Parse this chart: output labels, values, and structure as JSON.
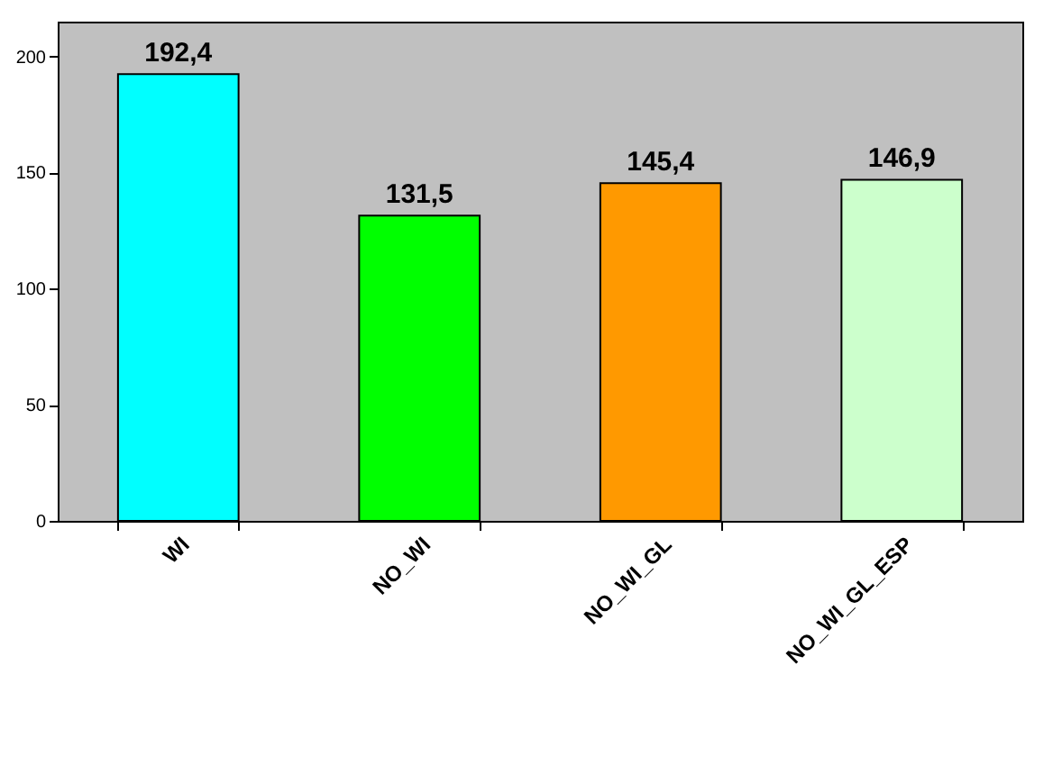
{
  "chart_data": {
    "type": "bar",
    "categories": [
      "WI",
      "NO_WI",
      "NO_WI_GL",
      "NO_WI_GL_ESP"
    ],
    "values": [
      192.4,
      131.5,
      145.4,
      146.9
    ],
    "colors": [
      "#00ffff",
      "#00ff00",
      "#ff9900",
      "#ccffcc"
    ],
    "value_labels": [
      "192,4",
      "131,5",
      "145,4",
      "146,9"
    ],
    "ylim": [
      0,
      215
    ],
    "yticks": [
      0,
      50,
      100,
      150,
      200
    ],
    "grid": false
  }
}
